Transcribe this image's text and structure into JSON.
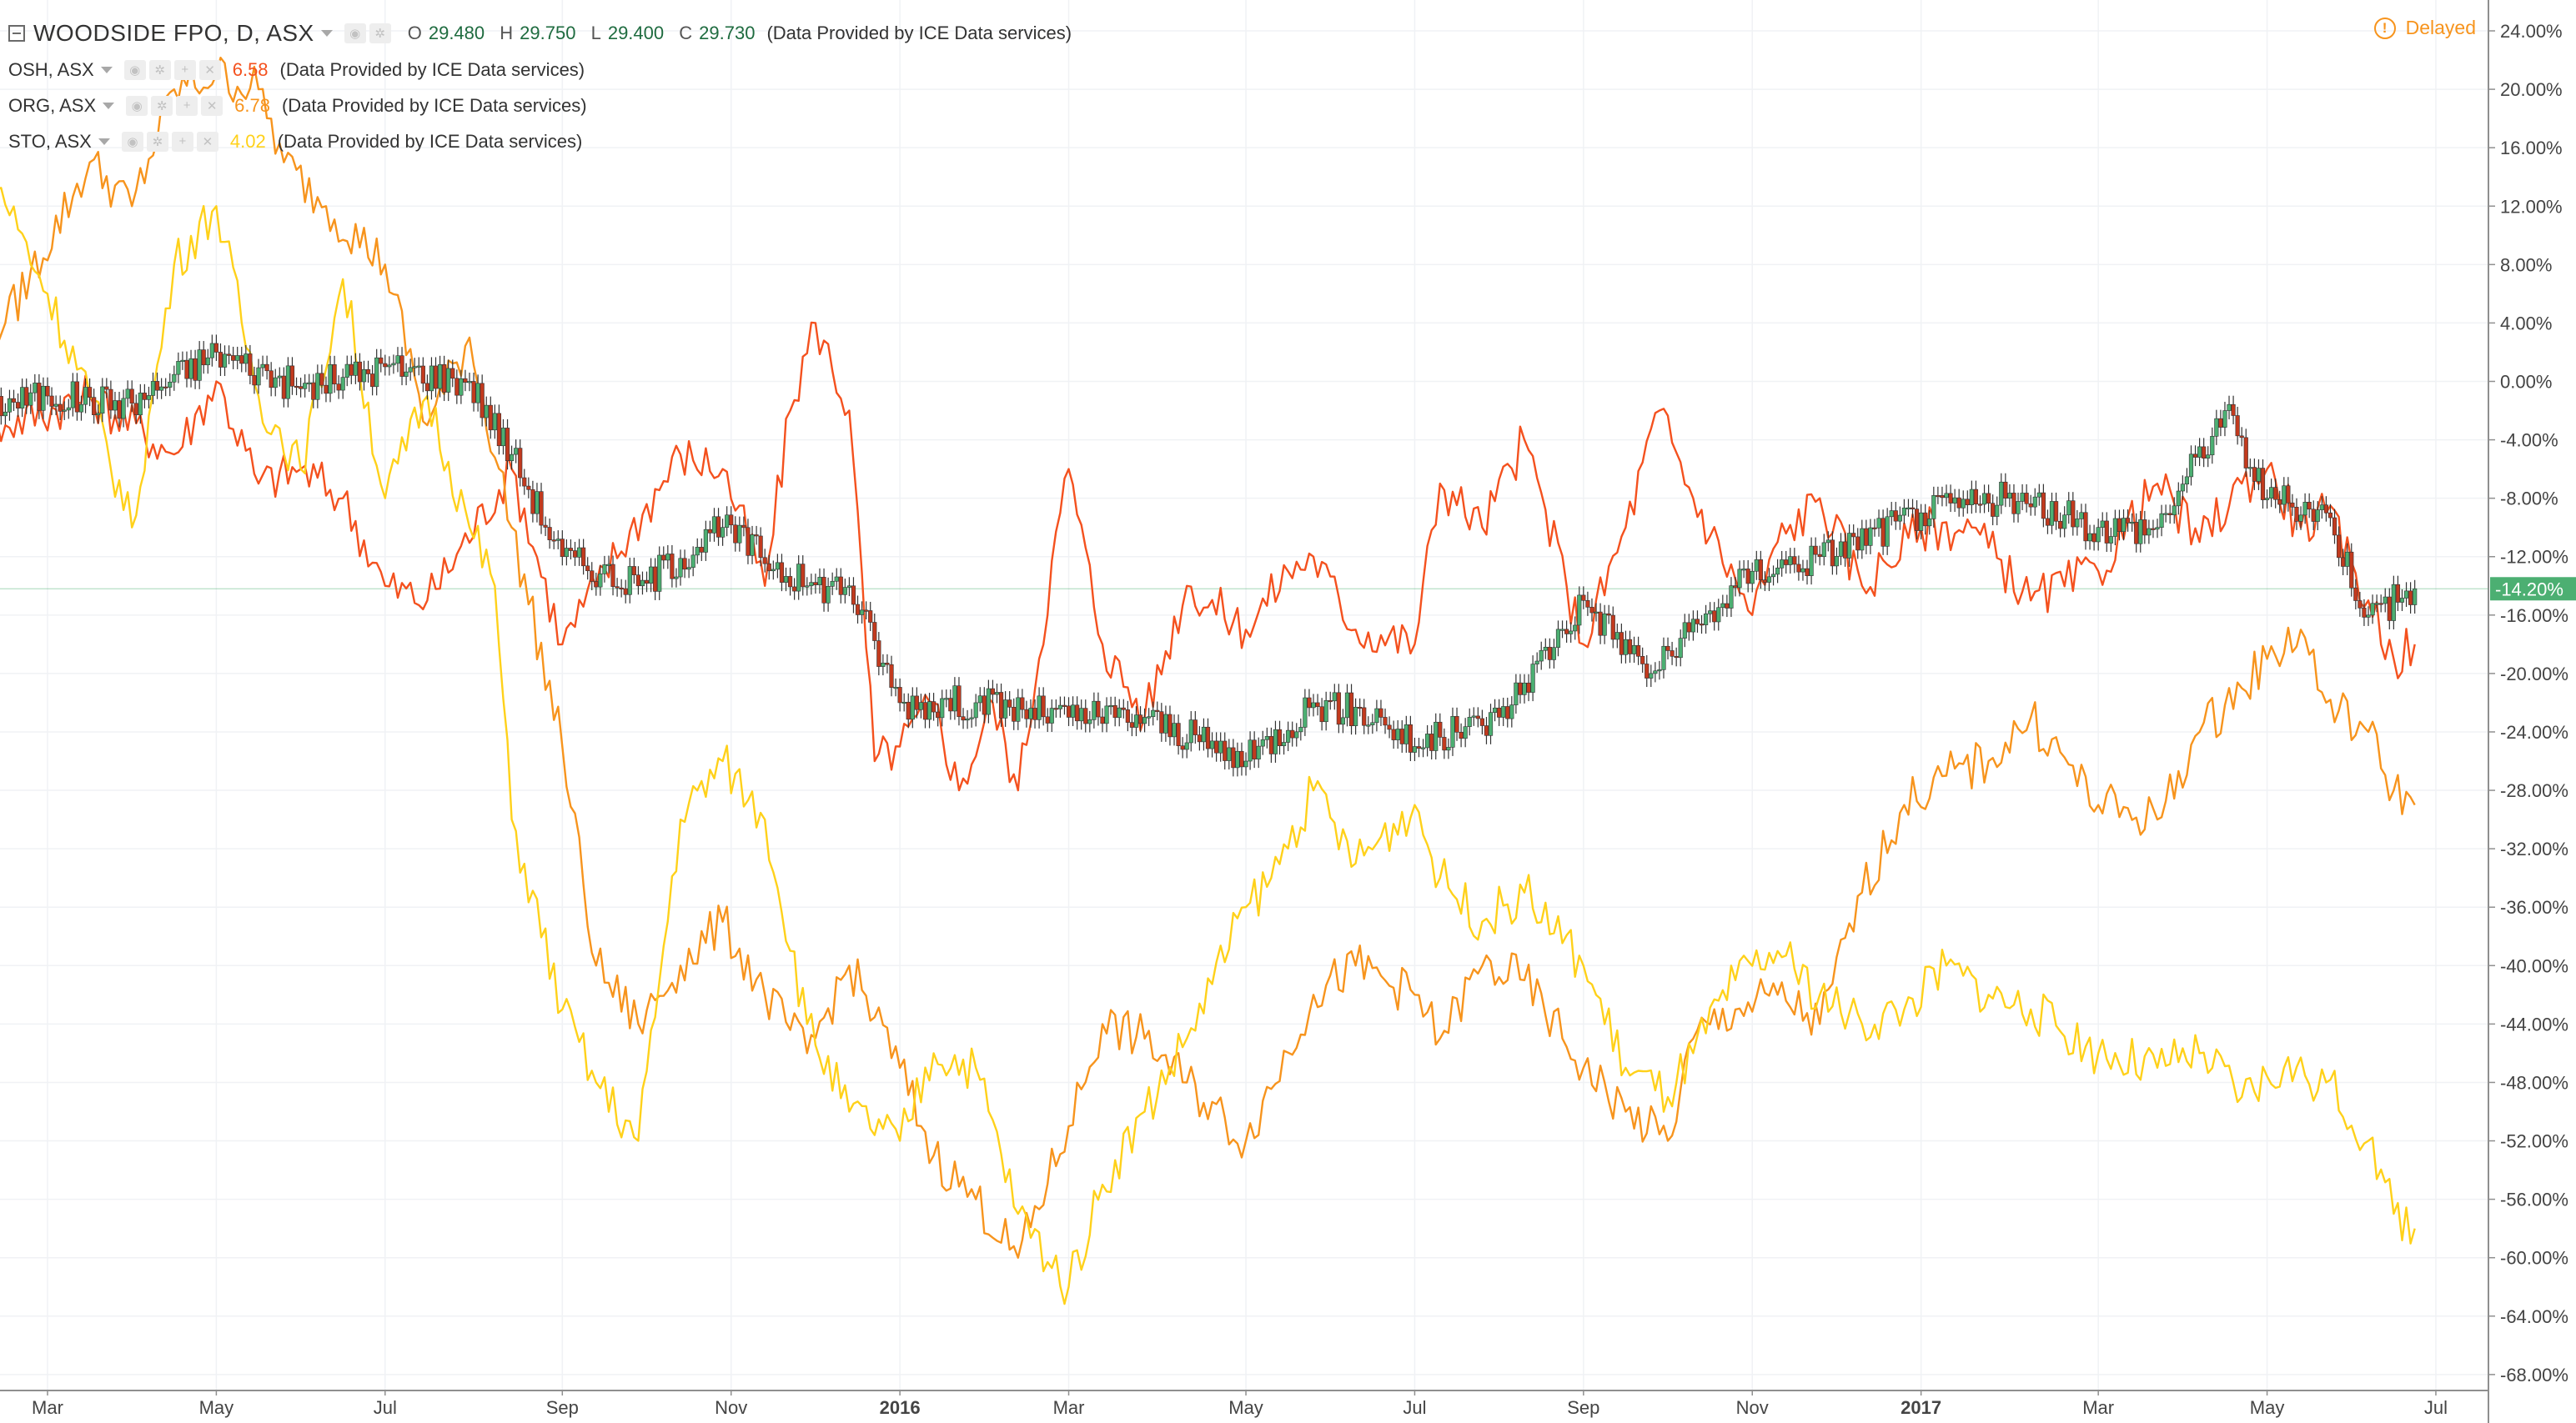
{
  "header": {
    "main_symbol": "WOODSIDE FPO, D, ASX",
    "ohlc": [
      {
        "label": "O",
        "value": "29.480"
      },
      {
        "label": "H",
        "value": "29.750"
      },
      {
        "label": "L",
        "value": "29.400"
      },
      {
        "label": "C",
        "value": "29.730"
      }
    ],
    "provider": "(Data Provided by ICE Data services)",
    "delayed_label": "Delayed",
    "delayed_icon": "!",
    "comparisons": [
      {
        "symbol": "OSH, ASX",
        "value": "6.58",
        "color": "#f4511e",
        "provider": "(Data Provided by ICE Data services)"
      },
      {
        "symbol": "ORG, ASX",
        "value": "6.78",
        "color": "#f7941d",
        "provider": "(Data Provided by ICE Data services)"
      },
      {
        "symbol": "STO, ASX",
        "value": "4.02",
        "color": "#ffd11a",
        "provider": "(Data Provided by ICE Data services)"
      }
    ]
  },
  "chart_data": {
    "type": "line",
    "x_ticks": [
      {
        "label": "Mar",
        "pos": 1.5,
        "bold": false
      },
      {
        "label": "May",
        "pos": 3.5,
        "bold": false
      },
      {
        "label": "Jul",
        "pos": 5.5,
        "bold": false
      },
      {
        "label": "Sep",
        "pos": 7.6,
        "bold": false
      },
      {
        "label": "Nov",
        "pos": 9.6,
        "bold": false
      },
      {
        "label": "2016",
        "pos": 11.6,
        "bold": true
      },
      {
        "label": "Mar",
        "pos": 13.6,
        "bold": false
      },
      {
        "label": "May",
        "pos": 15.7,
        "bold": false
      },
      {
        "label": "Jul",
        "pos": 17.7,
        "bold": false
      },
      {
        "label": "Sep",
        "pos": 19.7,
        "bold": false
      },
      {
        "label": "Nov",
        "pos": 21.7,
        "bold": false
      },
      {
        "label": "2017",
        "pos": 23.7,
        "bold": true
      },
      {
        "label": "Mar",
        "pos": 25.8,
        "bold": false
      },
      {
        "label": "May",
        "pos": 27.8,
        "bold": false
      },
      {
        "label": "Jul",
        "pos": 29.8,
        "bold": false
      }
    ],
    "x_range": [
      0.4,
      29.55
    ],
    "y_range": [
      -70,
      25
    ],
    "y_ticks": [
      24,
      20,
      16,
      12,
      8,
      4,
      0,
      -4,
      -8,
      -12,
      -16,
      -20,
      -24,
      -28,
      -32,
      -36,
      -40,
      -44,
      -48,
      -52,
      -56,
      -60,
      -64,
      -68
    ],
    "y_unit": "%",
    "last_value_label": "-14.20%",
    "last_value": -14.2,
    "grid": true,
    "series": [
      {
        "name": "WOODSIDE FPO",
        "style": "candlestick",
        "up_color": "#4caf72",
        "down_color": "#c23a1e",
        "x": [
          0.4,
          1.5,
          2.5,
          3.5,
          4.5,
          5.5,
          6.5,
          7.0,
          7.6,
          8.5,
          9.5,
          10.5,
          11.0,
          11.6,
          12.5,
          13.6,
          14.5,
          15.7,
          16.5,
          17.3,
          17.7,
          18.7,
          19.7,
          20.5,
          21.7,
          22.5,
          23.7,
          24.7,
          25.8,
          26.5,
          27.3,
          27.8,
          28.5,
          29.0,
          29.55
        ],
        "values": [
          -2,
          -1,
          -1.5,
          2,
          -0.5,
          1,
          0,
          -5,
          -12,
          -14,
          -10,
          -14,
          -14,
          -22,
          -22,
          -23,
          -23,
          -26,
          -22,
          -23,
          -25,
          -23,
          -15,
          -20,
          -13,
          -12,
          -9,
          -8,
          -10,
          -10,
          -2,
          -8,
          -9,
          -16,
          -14.2
        ]
      },
      {
        "name": "OSH",
        "style": "line",
        "color": "#f4511e",
        "x": [
          0.4,
          1.0,
          2.0,
          3.0,
          3.5,
          4.0,
          4.5,
          5.0,
          5.5,
          6.0,
          7.0,
          7.6,
          8.0,
          9.0,
          9.5,
          10.0,
          10.3,
          10.6,
          11.0,
          11.3,
          11.6,
          12.0,
          12.3,
          12.7,
          13.0,
          13.5,
          13.6,
          14.0,
          14.5,
          15.0,
          15.7,
          16.2,
          16.5,
          17.0,
          17.7,
          18.0,
          18.5,
          19.0,
          19.5,
          19.7,
          20.2,
          20.6,
          21.0,
          21.7,
          22.0,
          22.5,
          23.0,
          23.7,
          24.3,
          25.0,
          25.8,
          26.5,
          27.0,
          27.5,
          27.8,
          28.2,
          28.5,
          29.0,
          29.3,
          29.55
        ],
        "values": [
          -5,
          -3,
          -1,
          -5,
          0,
          -7,
          -6,
          -8,
          -14,
          -15,
          -6,
          -18,
          -14,
          -5,
          -6,
          -14,
          -2,
          4,
          -2,
          -26,
          -25,
          -22,
          -28,
          -22,
          -28,
          -9,
          -6,
          -18,
          -23,
          -14,
          -17,
          -13,
          -12,
          -17,
          -18,
          -7,
          -10,
          -4,
          -14,
          -18,
          -10,
          -2,
          -8,
          -16,
          -11,
          -8,
          -14,
          -10,
          -10,
          -15,
          -13,
          -7,
          -11,
          -7,
          -6,
          -10,
          -9,
          -15,
          -19,
          -18
        ]
      },
      {
        "name": "ORG",
        "style": "line",
        "color": "#f7941d",
        "x": [
          0.4,
          1.0,
          2.0,
          2.5,
          3.0,
          3.5,
          4.0,
          4.3,
          4.8,
          5.5,
          6.0,
          6.5,
          7.0,
          7.6,
          8.0,
          8.5,
          9.0,
          9.5,
          10.0,
          10.5,
          11.0,
          11.6,
          12.0,
          12.5,
          13.0,
          13.6,
          14.0,
          14.5,
          15.0,
          15.7,
          16.5,
          17.0,
          17.7,
          18.0,
          18.5,
          19.0,
          19.7,
          20.2,
          20.7,
          21.0,
          21.5,
          22.0,
          22.5,
          23.0,
          23.5,
          24.0,
          24.5,
          25.0,
          25.8,
          26.5,
          27.0,
          27.5,
          27.8,
          28.2,
          28.5,
          29.0,
          29.3,
          29.55
        ],
        "values": [
          2,
          4,
          15,
          12,
          20,
          21,
          20,
          15,
          12,
          8,
          -3,
          3,
          -10,
          -25,
          -40,
          -44,
          -40,
          -37,
          -42,
          -46,
          -40,
          -47,
          -53,
          -56,
          -60,
          -51,
          -44,
          -45,
          -48,
          -52,
          -42,
          -40,
          -42,
          -45,
          -40,
          -41,
          -47,
          -50,
          -52,
          -45,
          -43,
          -42,
          -44,
          -35,
          -29,
          -27,
          -26,
          -23,
          -29,
          -30,
          -24,
          -21,
          -19,
          -17,
          -22,
          -24,
          -28,
          -29
        ]
      },
      {
        "name": "STO",
        "style": "line",
        "color": "#ffd11a",
        "x": [
          0.4,
          0.8,
          1.5,
          2.0,
          2.5,
          3.0,
          3.5,
          4.0,
          4.5,
          5.0,
          5.5,
          6.0,
          6.5,
          6.8,
          7.0,
          7.6,
          8.0,
          8.5,
          9.0,
          9.5,
          10.0,
          10.5,
          11.0,
          11.6,
          12.0,
          12.5,
          13.0,
          13.6,
          14.0,
          14.5,
          15.0,
          15.7,
          16.0,
          16.5,
          17.0,
          17.7,
          18.0,
          18.5,
          19.0,
          19.7,
          20.2,
          20.7,
          21.0,
          21.5,
          22.0,
          22.5,
          23.0,
          23.5,
          24.0,
          24.5,
          25.0,
          25.8,
          26.5,
          27.0,
          27.5,
          28.0,
          28.5,
          29.0,
          29.3,
          29.55
        ],
        "values": [
          -1,
          15,
          6,
          -1,
          -10,
          8,
          12,
          -1,
          -6,
          7,
          -8,
          -1,
          -10,
          -14,
          -30,
          -43,
          -48,
          -52,
          -30,
          -26,
          -30,
          -44,
          -50,
          -52,
          -46,
          -47,
          -57,
          -62,
          -55,
          -50,
          -45,
          -36,
          -34,
          -28,
          -33,
          -29,
          -34,
          -37,
          -35,
          -40,
          -47,
          -49,
          -46,
          -41,
          -39,
          -42,
          -44,
          -43,
          -40,
          -42,
          -43,
          -46,
          -47,
          -46,
          -49,
          -47,
          -48,
          -52,
          -57,
          -58
        ]
      }
    ]
  }
}
